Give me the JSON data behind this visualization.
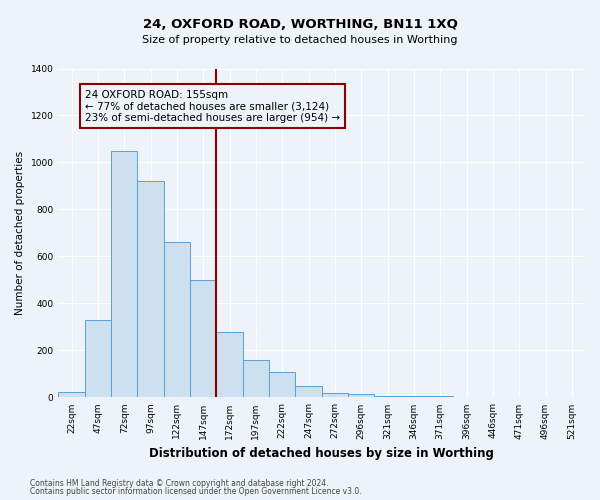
{
  "title1": "24, OXFORD ROAD, WORTHING, BN11 1XQ",
  "title2": "Size of property relative to detached houses in Worthing",
  "xlabel": "Distribution of detached houses by size in Worthing",
  "ylabel": "Number of detached properties",
  "footnote1": "Contains HM Land Registry data © Crown copyright and database right 2024.",
  "footnote2": "Contains public sector information licensed under the Open Government Licence v3.0.",
  "categories": [
    "22sqm",
    "47sqm",
    "72sqm",
    "97sqm",
    "122sqm",
    "147sqm",
    "172sqm",
    "197sqm",
    "222sqm",
    "247sqm",
    "272sqm",
    "296sqm",
    "321sqm",
    "346sqm",
    "371sqm",
    "396sqm",
    "446sqm",
    "471sqm",
    "496sqm",
    "521sqm"
  ],
  "values": [
    25,
    330,
    1050,
    920,
    660,
    500,
    280,
    160,
    110,
    50,
    20,
    15,
    8,
    5,
    8,
    2,
    0,
    0,
    0,
    0
  ],
  "bar_color": "#cce0f0",
  "bar_edge_color": "#5a9fd4",
  "annotation_text": "24 OXFORD ROAD: 155sqm\n← 77% of detached houses are smaller (3,124)\n23% of semi-detached houses are larger (954) →",
  "vline_x": 5.5,
  "vline_color": "#8b0000",
  "box_color": "#8b0000",
  "ylim": [
    0,
    1400
  ],
  "yticks": [
    0,
    200,
    400,
    600,
    800,
    1000,
    1200,
    1400
  ],
  "background_color": "#eef3fa",
  "title1_fontsize": 9.5,
  "title2_fontsize": 8,
  "ylabel_fontsize": 7.5,
  "xlabel_fontsize": 8.5,
  "tick_fontsize": 6.5,
  "footnote_fontsize": 5.5,
  "annot_fontsize": 7.5
}
